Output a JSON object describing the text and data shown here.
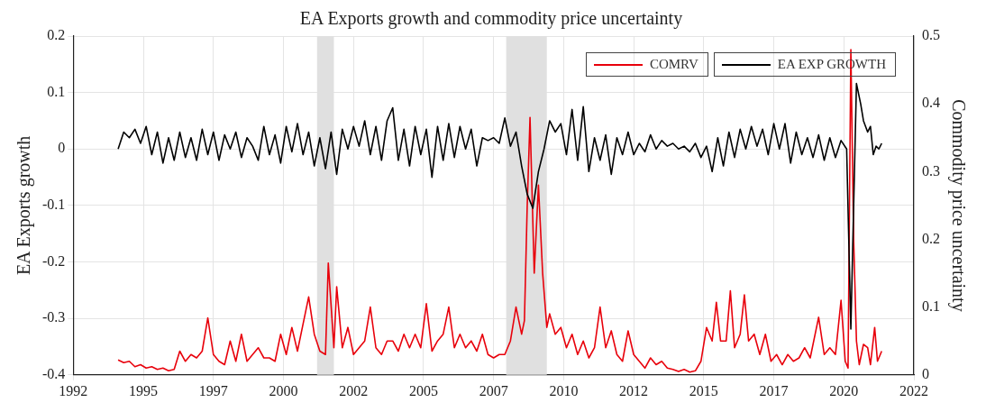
{
  "chart_data": {
    "type": "line",
    "title": "EA Exports growth and commodity price uncertainty",
    "ylabel": "EA Exports growth",
    "y2label": "Commodity price uncertainty",
    "xlim": [
      1992,
      2022
    ],
    "xticks": [
      1992,
      {
        "value": 1994.5,
        "label": "1995"
      },
      1997,
      {
        "value": 1999.5,
        "label": "2000"
      },
      2002,
      {
        "value": 2004.5,
        "label": "2005"
      },
      2007,
      {
        "value": 2009.5,
        "label": "2010"
      },
      2012,
      {
        "value": 2014.5,
        "label": "2015"
      },
      2017,
      {
        "value": 2019.5,
        "label": "2020"
      },
      2022
    ],
    "ylim": [
      -0.4,
      0.2
    ],
    "yticks": [
      -0.4,
      -0.3,
      -0.2,
      -0.1,
      0,
      0.1,
      0.2
    ],
    "y2lim": [
      0,
      0.5
    ],
    "y2ticks": [
      0,
      0.1,
      0.2,
      0.3,
      0.4,
      0.5
    ],
    "grid": true,
    "legend": "top right",
    "line_style": "solid",
    "marker": "none",
    "bands": [
      {
        "axis": "x",
        "from": 2000.7,
        "to": 2001.3,
        "color": "#e0e0e0"
      },
      {
        "axis": "x",
        "from": 2007.45,
        "to": 2008.9,
        "color": "#e0e0e0"
      }
    ],
    "series": [
      {
        "name": "COMRV",
        "color": "#e8000b",
        "axis": "y2",
        "x": [
          1993.6,
          1993.8,
          1994.0,
          1994.2,
          1994.4,
          1994.6,
          1994.8,
          1995.0,
          1995.2,
          1995.4,
          1995.6,
          1995.8,
          1996.0,
          1996.2,
          1996.4,
          1996.6,
          1996.8,
          1997.0,
          1997.2,
          1997.4,
          1997.6,
          1997.8,
          1998.0,
          1998.2,
          1998.4,
          1998.6,
          1998.8,
          1999.0,
          1999.2,
          1999.4,
          1999.6,
          1999.8,
          2000.0,
          2000.2,
          2000.4,
          2000.6,
          2000.8,
          2001.0,
          2001.1,
          2001.3,
          2001.4,
          2001.6,
          2001.8,
          2002.0,
          2002.2,
          2002.4,
          2002.6,
          2002.8,
          2003.0,
          2003.2,
          2003.4,
          2003.6,
          2003.8,
          2004.0,
          2004.2,
          2004.4,
          2004.6,
          2004.8,
          2005.0,
          2005.2,
          2005.4,
          2005.6,
          2005.8,
          2006.0,
          2006.2,
          2006.4,
          2006.6,
          2006.8,
          2007.0,
          2007.2,
          2007.4,
          2007.6,
          2007.8,
          2008.0,
          2008.1,
          2008.2,
          2008.3,
          2008.45,
          2008.6,
          2008.75,
          2008.9,
          2009.0,
          2009.2,
          2009.4,
          2009.6,
          2009.8,
          2010.0,
          2010.2,
          2010.4,
          2010.6,
          2010.8,
          2011.0,
          2011.2,
          2011.4,
          2011.6,
          2011.8,
          2012.0,
          2012.2,
          2012.4,
          2012.6,
          2012.8,
          2013.0,
          2013.2,
          2013.4,
          2013.6,
          2013.8,
          2014.0,
          2014.2,
          2014.4,
          2014.6,
          2014.8,
          2014.95,
          2015.1,
          2015.3,
          2015.45,
          2015.6,
          2015.8,
          2015.95,
          2016.1,
          2016.3,
          2016.5,
          2016.7,
          2016.9,
          2017.1,
          2017.3,
          2017.5,
          2017.7,
          2017.9,
          2018.1,
          2018.3,
          2018.6,
          2018.8,
          2019.0,
          2019.2,
          2019.4,
          2019.55,
          2019.65,
          2019.75,
          2019.85,
          2019.95,
          2020.05,
          2020.2,
          2020.35,
          2020.45,
          2020.6,
          2020.7,
          2020.85
        ],
        "values": [
          0.022,
          0.018,
          0.02,
          0.012,
          0.015,
          0.01,
          0.012,
          0.008,
          0.01,
          0.006,
          0.008,
          0.035,
          0.02,
          0.03,
          0.025,
          0.035,
          0.084,
          0.03,
          0.02,
          0.015,
          0.05,
          0.02,
          0.06,
          0.02,
          0.03,
          0.04,
          0.025,
          0.025,
          0.02,
          0.06,
          0.03,
          0.07,
          0.035,
          0.075,
          0.115,
          0.06,
          0.035,
          0.03,
          0.165,
          0.04,
          0.13,
          0.04,
          0.07,
          0.03,
          0.04,
          0.05,
          0.1,
          0.04,
          0.03,
          0.05,
          0.05,
          0.035,
          0.06,
          0.04,
          0.06,
          0.04,
          0.105,
          0.035,
          0.05,
          0.06,
          0.1,
          0.04,
          0.06,
          0.04,
          0.05,
          0.035,
          0.06,
          0.03,
          0.025,
          0.03,
          0.03,
          0.05,
          0.1,
          0.06,
          0.08,
          0.25,
          0.38,
          0.15,
          0.28,
          0.15,
          0.07,
          0.09,
          0.06,
          0.07,
          0.04,
          0.06,
          0.03,
          0.05,
          0.025,
          0.04,
          0.1,
          0.04,
          0.065,
          0.03,
          0.02,
          0.065,
          0.03,
          0.02,
          0.01,
          0.025,
          0.015,
          0.02,
          0.01,
          0.008,
          0.005,
          0.008,
          0.004,
          0.006,
          0.02,
          0.07,
          0.05,
          0.107,
          0.05,
          0.05,
          0.124,
          0.04,
          0.06,
          0.118,
          0.05,
          0.06,
          0.03,
          0.06,
          0.02,
          0.03,
          0.015,
          0.03,
          0.02,
          0.025,
          0.04,
          0.025,
          0.085,
          0.03,
          0.04,
          0.03,
          0.11,
          0.02,
          0.01,
          0.48,
          0.2,
          0.05,
          0.015,
          0.045,
          0.04,
          0.015,
          0.07,
          0.02,
          0.035
        ]
      },
      {
        "name": "EA EXP GROWTH",
        "color": "#000000",
        "x": [
          1993.6,
          1993.8,
          1994.0,
          1994.2,
          1994.4,
          1994.6,
          1994.8,
          1995.0,
          1995.2,
          1995.4,
          1995.6,
          1995.8,
          1996.0,
          1996.2,
          1996.4,
          1996.6,
          1996.8,
          1997.0,
          1997.2,
          1997.4,
          1997.6,
          1997.8,
          1998.0,
          1998.2,
          1998.4,
          1998.6,
          1998.8,
          1999.0,
          1999.2,
          1999.4,
          1999.6,
          1999.8,
          2000.0,
          2000.2,
          2000.4,
          2000.6,
          2000.8,
          2001.0,
          2001.2,
          2001.4,
          2001.6,
          2001.8,
          2002.0,
          2002.2,
          2002.4,
          2002.6,
          2002.8,
          2003.0,
          2003.2,
          2003.4,
          2003.6,
          2003.8,
          2004.0,
          2004.2,
          2004.4,
          2004.6,
          2004.8,
          2005.0,
          2005.2,
          2005.4,
          2005.6,
          2005.8,
          2006.0,
          2006.2,
          2006.4,
          2006.6,
          2006.8,
          2007.0,
          2007.2,
          2007.4,
          2007.6,
          2007.8,
          2008.0,
          2008.2,
          2008.4,
          2008.6,
          2008.8,
          2009.0,
          2009.2,
          2009.4,
          2009.6,
          2009.8,
          2010.0,
          2010.2,
          2010.4,
          2010.6,
          2010.8,
          2011.0,
          2011.2,
          2011.4,
          2011.6,
          2011.8,
          2012.0,
          2012.2,
          2012.4,
          2012.6,
          2012.8,
          2013.0,
          2013.2,
          2013.4,
          2013.6,
          2013.8,
          2014.0,
          2014.2,
          2014.4,
          2014.6,
          2014.8,
          2015.0,
          2015.2,
          2015.4,
          2015.6,
          2015.8,
          2016.0,
          2016.2,
          2016.4,
          2016.6,
          2016.8,
          2017.0,
          2017.2,
          2017.4,
          2017.6,
          2017.8,
          2018.0,
          2018.2,
          2018.4,
          2018.6,
          2018.8,
          2019.0,
          2019.2,
          2019.4,
          2019.6,
          2019.75,
          2019.95,
          2020.1,
          2020.2,
          2020.35,
          2020.45,
          2020.55,
          2020.65,
          2020.75,
          2020.85
        ],
        "values": [
          0.0,
          0.03,
          0.02,
          0.035,
          0.01,
          0.04,
          -0.01,
          0.03,
          -0.025,
          0.02,
          -0.02,
          0.03,
          -0.015,
          0.02,
          -0.02,
          0.035,
          -0.01,
          0.03,
          -0.02,
          0.025,
          0.0,
          0.03,
          -0.015,
          0.02,
          0.005,
          -0.02,
          0.04,
          -0.01,
          0.025,
          -0.025,
          0.04,
          -0.005,
          0.045,
          -0.01,
          0.03,
          -0.03,
          0.02,
          -0.035,
          0.03,
          -0.045,
          0.035,
          0.0,
          0.04,
          0.005,
          0.05,
          -0.01,
          0.04,
          -0.02,
          0.05,
          0.073,
          -0.02,
          0.035,
          -0.03,
          0.04,
          -0.01,
          0.035,
          -0.05,
          0.04,
          -0.02,
          0.045,
          -0.015,
          0.04,
          0.0,
          0.035,
          -0.03,
          0.02,
          0.015,
          0.02,
          0.01,
          0.055,
          0.005,
          0.03,
          -0.03,
          -0.08,
          -0.105,
          -0.04,
          0.0,
          0.05,
          0.03,
          0.045,
          -0.01,
          0.07,
          -0.02,
          0.075,
          -0.04,
          0.02,
          -0.02,
          0.025,
          -0.045,
          0.02,
          -0.01,
          0.03,
          -0.01,
          0.01,
          -0.005,
          0.025,
          0.0,
          0.015,
          0.005,
          0.01,
          0.0,
          0.005,
          -0.005,
          0.01,
          -0.015,
          0.005,
          -0.04,
          0.02,
          -0.03,
          0.03,
          -0.015,
          0.035,
          0.0,
          0.04,
          0.005,
          0.035,
          -0.01,
          0.045,
          0.0,
          0.045,
          -0.025,
          0.03,
          -0.01,
          0.02,
          -0.015,
          0.025,
          -0.02,
          0.02,
          -0.015,
          0.015,
          0.0,
          -0.319,
          0.116,
          0.08,
          0.05,
          0.03,
          0.04,
          -0.01,
          0.005,
          0.0,
          0.01
        ]
      }
    ]
  }
}
